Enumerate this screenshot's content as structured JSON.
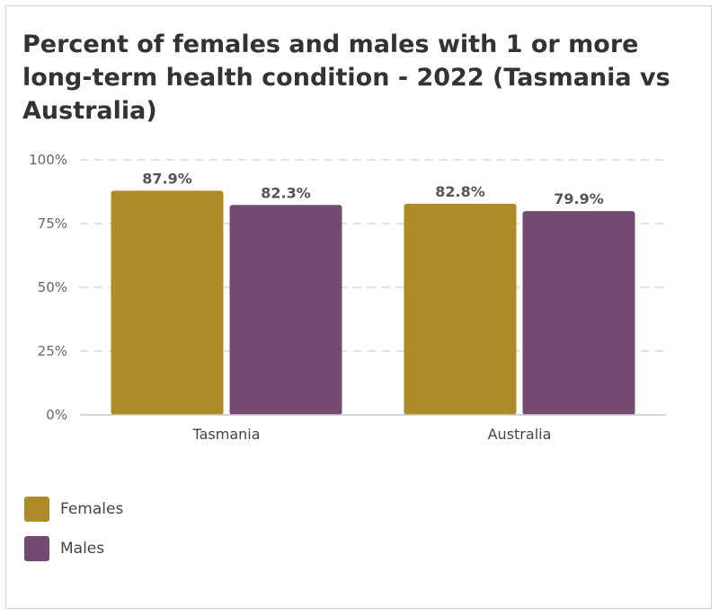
{
  "chart_data": {
    "type": "bar",
    "title": "Percent of females and males with 1 or more long-term health condition - 2022 (Tasmania vs Australia)",
    "categories": [
      "Tasmania",
      "Australia"
    ],
    "series": [
      {
        "name": "Females",
        "color": "#ad8b27",
        "values": [
          87.9,
          82.8
        ],
        "labels": [
          "87.9%",
          "82.8%"
        ]
      },
      {
        "name": "Males",
        "color": "#744a70",
        "values": [
          82.3,
          79.9
        ],
        "labels": [
          "82.3%",
          "79.9%"
        ]
      }
    ],
    "ylim": [
      0,
      100
    ],
    "yticks": [
      0,
      25,
      50,
      75,
      100
    ],
    "ytick_labels": [
      "0%",
      "25%",
      "50%",
      "75%",
      "100%"
    ],
    "grid": true,
    "legend_position": "bottom-left"
  }
}
